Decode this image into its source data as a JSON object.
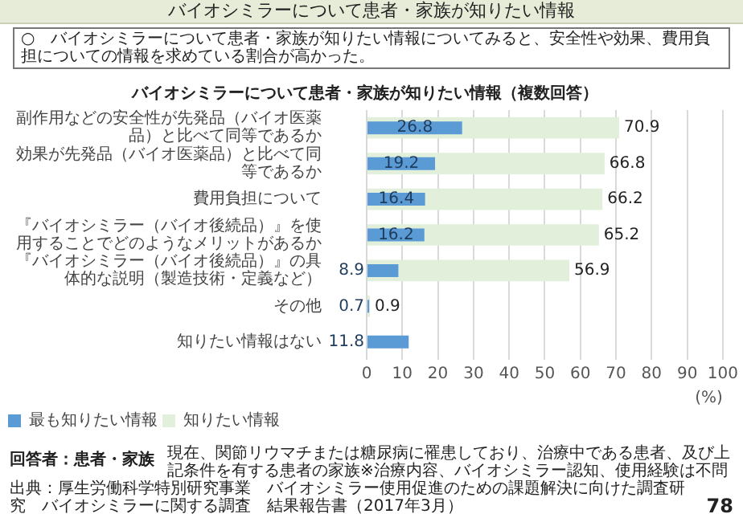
{
  "chart_data": {
    "type": "bar",
    "orientation": "horizontal",
    "title": "バイオシミラーについて患者・家族が知りたい情報（複数回答）",
    "xlabel": "(%)",
    "categories": [
      "副作用などの安全性が先発品（バイオ医薬品）と比べて同等であるか",
      "効果が先発品（バイオ医薬品）と比べて同等であるか",
      "費用負担について",
      "『バイオシミラー（バイオ後続品）』を使用することでどのようなメリットがあるか",
      "『バイオシミラー（バイオ後続品）』の具体的な説明（製造技術・定義など）",
      "その他",
      "知りたい情報はない"
    ],
    "series": [
      {
        "name": "最も知りたい情報",
        "color": "#5b9bd5",
        "values": [
          26.8,
          19.2,
          16.4,
          16.2,
          8.9,
          0.7,
          11.8
        ]
      },
      {
        "name": "知りたい情報",
        "color": "#e2efda",
        "values": [
          70.9,
          66.8,
          66.2,
          65.2,
          56.9,
          0.9,
          null
        ]
      }
    ],
    "xlim": [
      0,
      100
    ],
    "xticks": [
      0,
      10,
      20,
      30,
      40,
      50,
      60,
      70,
      80,
      90,
      100
    ],
    "grid": "x",
    "legend": "bottom left",
    "data_labels": true,
    "annotations": [
      "バイオシミラーについて患者・家族が知りたい情報",
      "○　バイオシミラーについて患者・家族が知りたい情報についてみると、安全性や効果、費用負担についての情報を求めている割合が高かった。",
      "回答者：患者・家族",
      "現在、関節リウマチまたは糖尿病に罹患しており、治療中である患者、及び上記条件を有する患者の家族※治療内容、バイオシミラー認知、使用経験は不問",
      "出典：厚生労働科学特別研究事業　バイオシミラー使用促進のための課題解決に向けた調査研究　バイオシミラーに関する調査　結果報告書（2017年3月）",
      "78"
    ]
  }
}
